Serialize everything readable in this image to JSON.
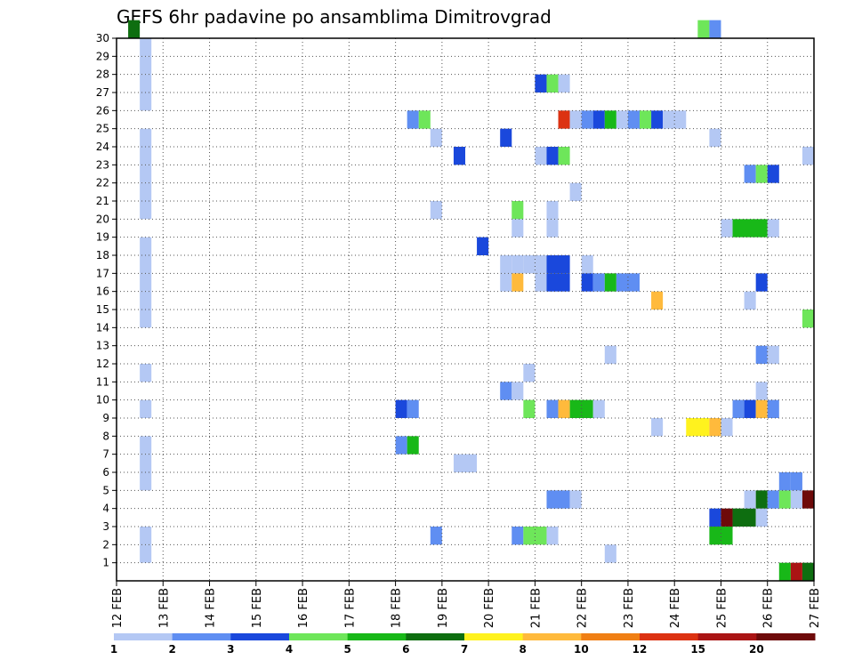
{
  "chart_data": {
    "type": "heatmap",
    "title": "GEFS 6hr padavine po ansamblima Dimitrovgrad",
    "x_tick_labels": [
      "12 FEB",
      "13 FEB",
      "14 FEB",
      "15 FEB",
      "16 FEB",
      "17 FEB",
      "18 FEB",
      "19 FEB",
      "20 FEB",
      "21 FEB",
      "22 FEB",
      "23 FEB",
      "24 FEB",
      "25 FEB",
      "26 FEB",
      "27 FEB"
    ],
    "y_tick_labels": [
      "1",
      "2",
      "3",
      "4",
      "5",
      "6",
      "7",
      "8",
      "9",
      "10",
      "11",
      "12",
      "13",
      "14",
      "15",
      "16",
      "17",
      "18",
      "19",
      "20",
      "21",
      "22",
      "23",
      "24",
      "25",
      "26",
      "27",
      "28",
      "29",
      "30"
    ],
    "xlim": [
      0,
      60
    ],
    "ylim": [
      0,
      30
    ],
    "x_unit": "6-hour step since 12 FEB 00Z",
    "grid": true,
    "legend_bins": [
      {
        "label": "1",
        "color": "#b4c8f4"
      },
      {
        "label": "2",
        "color": "#5f8ef2"
      },
      {
        "label": "3",
        "color": "#1a48dc"
      },
      {
        "label": "4",
        "color": "#6ee65a"
      },
      {
        "label": "5",
        "color": "#18b818"
      },
      {
        "label": "6",
        "color": "#0e6e10"
      },
      {
        "label": "7",
        "color": "#fff21e"
      },
      {
        "label": "8",
        "color": "#ffba3c"
      },
      {
        "label": "10",
        "color": "#f07f14"
      },
      {
        "label": "12",
        "color": "#dc3212"
      },
      {
        "label": "15",
        "color": "#aa1414"
      },
      {
        "label": "20",
        "color": "#6e0a0a"
      }
    ],
    "cells": [
      [
        1,
        1,
        30,
        6
      ],
      [
        2,
        1,
        29,
        1
      ],
      [
        2,
        1,
        28,
        1
      ],
      [
        2,
        1,
        27,
        1
      ],
      [
        2,
        1,
        26,
        1
      ],
      [
        2,
        1,
        24,
        1
      ],
      [
        2,
        1,
        23,
        1
      ],
      [
        2,
        1,
        22,
        1
      ],
      [
        2,
        1,
        21,
        1
      ],
      [
        2,
        1,
        20,
        1
      ],
      [
        2,
        1,
        18,
        1
      ],
      [
        2,
        1,
        17,
        1
      ],
      [
        2,
        1,
        16,
        1
      ],
      [
        2,
        1,
        15,
        1
      ],
      [
        2,
        1,
        14,
        1
      ],
      [
        2,
        1,
        11,
        1
      ],
      [
        2,
        1,
        9,
        1
      ],
      [
        2,
        1,
        7,
        1
      ],
      [
        2,
        1,
        6,
        1
      ],
      [
        2,
        1,
        5,
        1
      ],
      [
        2,
        1,
        2,
        1
      ],
      [
        2,
        1,
        1,
        1
      ],
      [
        24,
        1,
        9,
        3
      ],
      [
        25,
        1,
        9,
        2
      ],
      [
        24,
        1,
        7,
        2
      ],
      [
        25,
        1,
        7,
        5
      ],
      [
        25,
        1,
        25,
        2
      ],
      [
        26,
        1,
        25,
        4
      ],
      [
        27,
        1,
        24,
        1
      ],
      [
        27,
        1,
        20,
        1
      ],
      [
        27,
        1,
        2,
        2
      ],
      [
        29,
        1,
        23,
        3
      ],
      [
        29,
        2,
        6,
        1
      ],
      [
        31,
        1,
        18,
        3
      ],
      [
        33,
        1,
        24,
        3
      ],
      [
        33,
        1,
        17,
        1
      ],
      [
        34,
        1,
        17,
        1
      ],
      [
        35,
        1,
        17,
        1
      ],
      [
        33,
        1,
        16,
        1
      ],
      [
        34,
        1,
        16,
        8
      ],
      [
        33,
        1,
        10,
        2
      ],
      [
        34,
        1,
        10,
        1
      ],
      [
        34,
        1,
        20,
        4
      ],
      [
        34,
        1,
        19,
        1
      ],
      [
        34,
        1,
        2,
        2
      ],
      [
        35,
        2,
        2,
        4
      ],
      [
        37,
        1,
        2,
        1
      ],
      [
        35,
        1,
        11,
        1
      ],
      [
        35,
        1,
        9,
        4
      ],
      [
        36,
        1,
        27,
        3
      ],
      [
        37,
        1,
        27,
        4
      ],
      [
        38,
        1,
        27,
        1
      ],
      [
        36,
        1,
        23,
        1
      ],
      [
        37,
        1,
        23,
        3
      ],
      [
        38,
        1,
        23,
        4
      ],
      [
        36,
        1,
        17,
        1
      ],
      [
        37,
        2,
        17,
        3
      ],
      [
        36,
        1,
        16,
        1
      ],
      [
        37,
        2,
        16,
        3
      ],
      [
        37,
        1,
        20,
        1
      ],
      [
        37,
        1,
        19,
        1
      ],
      [
        37,
        1,
        9,
        2
      ],
      [
        38,
        1,
        9,
        8
      ],
      [
        39,
        2,
        9,
        5
      ],
      [
        41,
        1,
        9,
        1
      ],
      [
        37,
        2,
        4,
        2
      ],
      [
        39,
        1,
        4,
        1
      ],
      [
        38,
        1,
        25,
        10
      ],
      [
        39,
        1,
        25,
        1
      ],
      [
        40,
        1,
        25,
        2
      ],
      [
        41,
        1,
        25,
        3
      ],
      [
        42,
        1,
        25,
        5
      ],
      [
        43,
        1,
        25,
        1
      ],
      [
        44,
        1,
        25,
        2
      ],
      [
        45,
        1,
        25,
        4
      ],
      [
        46,
        1,
        25,
        3
      ],
      [
        47,
        2,
        25,
        1
      ],
      [
        39,
        1,
        21,
        1
      ],
      [
        40,
        1,
        17,
        1
      ],
      [
        40,
        1,
        16,
        3
      ],
      [
        41,
        1,
        16,
        2
      ],
      [
        42,
        1,
        16,
        5
      ],
      [
        43,
        2,
        16,
        2
      ],
      [
        42,
        1,
        12,
        1
      ],
      [
        42,
        1,
        1,
        1
      ],
      [
        46,
        1,
        15,
        8
      ],
      [
        46,
        1,
        8,
        1
      ],
      [
        49,
        2,
        8,
        7
      ],
      [
        51,
        1,
        8,
        8
      ],
      [
        52,
        1,
        8,
        1
      ],
      [
        50,
        1,
        30,
        4
      ],
      [
        51,
        1,
        30,
        2
      ],
      [
        51,
        1,
        24,
        1
      ],
      [
        51,
        1,
        3,
        3
      ],
      [
        52,
        1,
        3,
        12
      ],
      [
        53,
        2,
        3,
        6
      ],
      [
        55,
        1,
        3,
        1
      ],
      [
        51,
        2,
        2,
        5
      ],
      [
        52,
        1,
        19,
        1
      ],
      [
        53,
        3,
        19,
        5
      ],
      [
        56,
        1,
        19,
        1
      ],
      [
        53,
        1,
        9,
        2
      ],
      [
        54,
        1,
        9,
        3
      ],
      [
        55,
        1,
        9,
        8
      ],
      [
        56,
        1,
        9,
        2
      ],
      [
        54,
        1,
        22,
        2
      ],
      [
        55,
        1,
        22,
        4
      ],
      [
        56,
        1,
        22,
        3
      ],
      [
        54,
        1,
        15,
        1
      ],
      [
        54,
        1,
        4,
        1
      ],
      [
        55,
        1,
        4,
        6
      ],
      [
        56,
        1,
        4,
        2
      ],
      [
        57,
        1,
        4,
        4
      ],
      [
        58,
        1,
        4,
        1
      ],
      [
        59,
        1,
        4,
        12
      ],
      [
        55,
        1,
        16,
        3
      ],
      [
        55,
        1,
        12,
        2
      ],
      [
        56,
        1,
        12,
        1
      ],
      [
        55,
        1,
        10,
        1
      ],
      [
        57,
        1,
        5,
        2
      ],
      [
        58,
        1,
        5,
        2
      ],
      [
        57,
        1,
        0,
        5
      ],
      [
        58,
        1,
        0,
        11
      ],
      [
        59,
        1,
        0,
        6
      ],
      [
        59,
        1,
        23,
        1
      ],
      [
        59,
        1,
        14,
        4
      ]
    ]
  }
}
